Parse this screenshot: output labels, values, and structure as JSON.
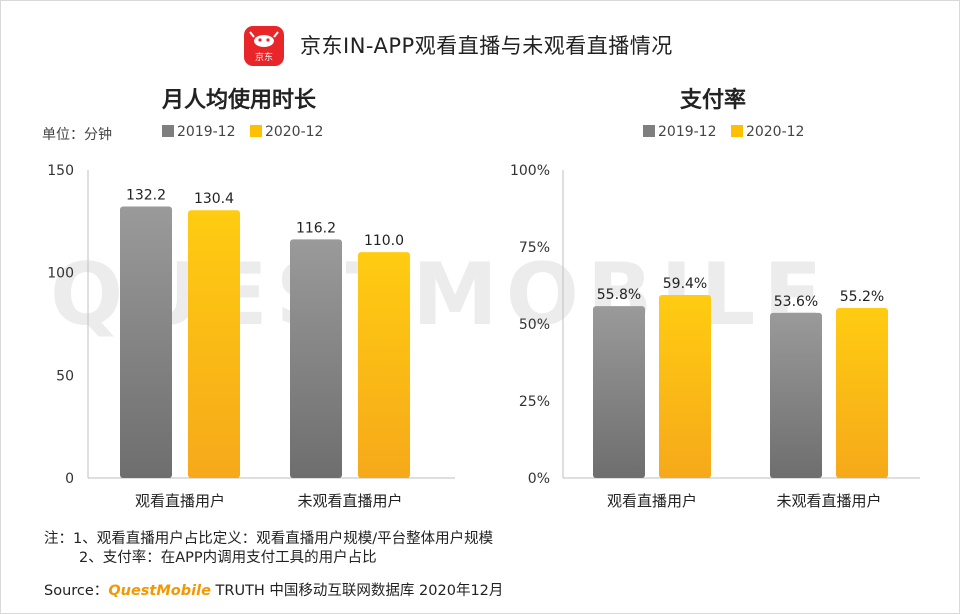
{
  "title": "京东IN-APP观看直播与未观看直播情况",
  "logo": {
    "text": "京东",
    "color": "#e8262a"
  },
  "watermark": "QUESTMOBILE",
  "unit_label": "单位：分钟",
  "colors": {
    "series_2019": "#7f7f7f",
    "series_2020": "#ffc000"
  },
  "chart_data": [
    {
      "type": "bar",
      "title": "月人均使用时长",
      "categories": [
        "观看直播用户",
        "未观看直播用户"
      ],
      "series": [
        {
          "name": "2019-12",
          "values": [
            132.2,
            116.2
          ],
          "labels": [
            "132.2",
            "116.2"
          ]
        },
        {
          "name": "2020-12",
          "values": [
            130.4,
            110.0
          ],
          "labels": [
            "130.4",
            "110.0"
          ]
        }
      ],
      "ylim": [
        0,
        150
      ],
      "yticks": [
        0,
        50,
        100,
        150
      ],
      "ytick_labels": [
        "0",
        "50",
        "100",
        "150"
      ],
      "xlabel": "",
      "ylabel": "",
      "legend": "top"
    },
    {
      "type": "bar",
      "title": "支付率",
      "categories": [
        "观看直播用户",
        "未观看直播用户"
      ],
      "series": [
        {
          "name": "2019-12",
          "values": [
            55.8,
            53.6
          ],
          "labels": [
            "55.8%",
            "53.6%"
          ]
        },
        {
          "name": "2020-12",
          "values": [
            59.4,
            55.2
          ],
          "labels": [
            "59.4%",
            "55.2%"
          ]
        }
      ],
      "ylim": [
        0,
        100
      ],
      "yticks": [
        0,
        25,
        50,
        75,
        100
      ],
      "ytick_labels": [
        "0%",
        "25%",
        "50%",
        "75%",
        "100%"
      ],
      "xlabel": "",
      "ylabel": "",
      "legend": "top"
    }
  ],
  "notes": {
    "line1": "注：1、观看直播用户占比定义：观看直播用户规模/平台整体用户规模",
    "line2": "2、支付率：在APP内调用支付工具的用户占比"
  },
  "source": {
    "prefix": "Source：",
    "brand": "QuestMobile",
    "rest": " TRUTH 中国移动互联网数据库 2020年12月"
  }
}
